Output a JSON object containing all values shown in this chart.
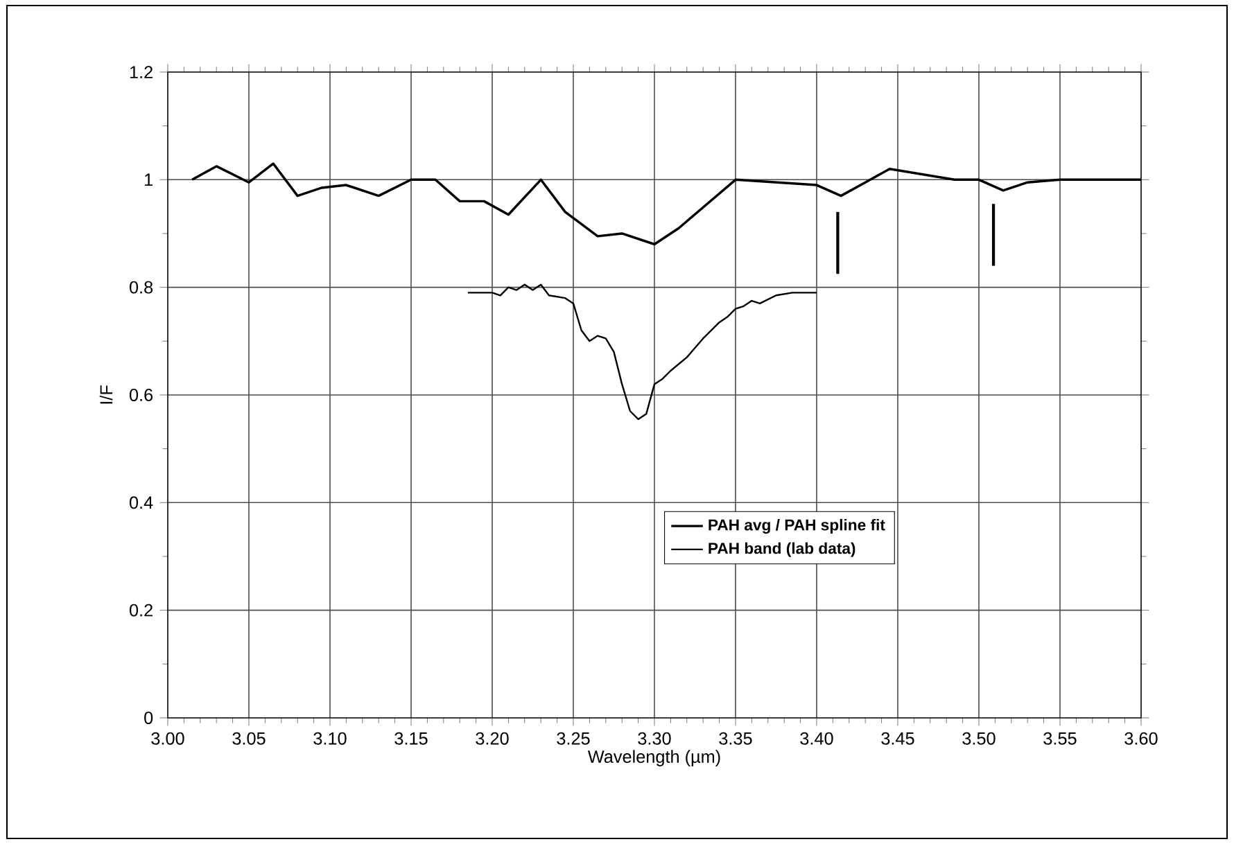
{
  "chart_data": {
    "type": "line",
    "xlabel": "Wavelength  (µm)",
    "ylabel": "I/F",
    "xlim": [
      3.0,
      3.6
    ],
    "ylim": [
      0,
      1.2
    ],
    "xticks": [
      {
        "value": 3.0,
        "label": "3.00"
      },
      {
        "value": 3.05,
        "label": "3.05"
      },
      {
        "value": 3.1,
        "label": "3.10"
      },
      {
        "value": 3.15,
        "label": "3.15"
      },
      {
        "value": 3.2,
        "label": "3.20"
      },
      {
        "value": 3.25,
        "label": "3.25"
      },
      {
        "value": 3.3,
        "label": "3.30"
      },
      {
        "value": 3.35,
        "label": "3.35"
      },
      {
        "value": 3.4,
        "label": "3.40"
      },
      {
        "value": 3.45,
        "label": "3.45"
      },
      {
        "value": 3.5,
        "label": "3.50"
      },
      {
        "value": 3.55,
        "label": "3.55"
      },
      {
        "value": 3.6,
        "label": "3.60"
      }
    ],
    "yticks": [
      0,
      0.2,
      0.4,
      0.6,
      0.8,
      1,
      1.2
    ],
    "grid": true,
    "legend": "bottom",
    "marker": "none",
    "line_style": "solid",
    "series": [
      {
        "name": "PAH avg / PAH spline fit",
        "color": "#000000",
        "x": [
          3.015,
          3.03,
          3.05,
          3.065,
          3.08,
          3.095,
          3.11,
          3.13,
          3.15,
          3.165,
          3.18,
          3.195,
          3.21,
          3.23,
          3.245,
          3.265,
          3.28,
          3.3,
          3.315,
          3.35,
          3.4,
          3.415,
          3.43,
          3.445,
          3.465,
          3.485,
          3.5,
          3.515,
          3.53,
          3.55,
          3.575,
          3.585,
          3.6
        ],
        "values": [
          1.0,
          1.025,
          0.995,
          1.03,
          0.97,
          0.985,
          0.99,
          0.97,
          1.0,
          1.0,
          0.96,
          0.96,
          0.935,
          1.0,
          0.94,
          0.895,
          0.9,
          0.88,
          0.91,
          1.0,
          0.99,
          0.97,
          0.995,
          1.02,
          1.01,
          1.0,
          1.0,
          0.98,
          0.995,
          1.0,
          1.0,
          1.0,
          1.0
        ]
      },
      {
        "name": "PAH band (lab data)",
        "color": "#000000",
        "x": [
          3.185,
          3.2,
          3.205,
          3.21,
          3.215,
          3.22,
          3.225,
          3.23,
          3.235,
          3.245,
          3.25,
          3.255,
          3.26,
          3.265,
          3.27,
          3.275,
          3.28,
          3.285,
          3.29,
          3.295,
          3.3,
          3.305,
          3.31,
          3.32,
          3.33,
          3.34,
          3.345,
          3.35,
          3.355,
          3.36,
          3.365,
          3.375,
          3.385,
          3.4
        ],
        "values": [
          0.79,
          0.79,
          0.785,
          0.8,
          0.795,
          0.805,
          0.795,
          0.805,
          0.785,
          0.78,
          0.77,
          0.72,
          0.7,
          0.71,
          0.705,
          0.68,
          0.62,
          0.57,
          0.555,
          0.565,
          0.62,
          0.63,
          0.645,
          0.67,
          0.705,
          0.735,
          0.745,
          0.76,
          0.765,
          0.775,
          0.77,
          0.785,
          0.79,
          0.79
        ]
      },
      {
        "color": "#000000",
        "x": [
          3.413,
          3.413
        ],
        "values": [
          0.94,
          0.825
        ]
      },
      {
        "color": "#000000",
        "x": [
          3.509,
          3.509
        ],
        "values": [
          0.955,
          0.84
        ]
      }
    ]
  }
}
